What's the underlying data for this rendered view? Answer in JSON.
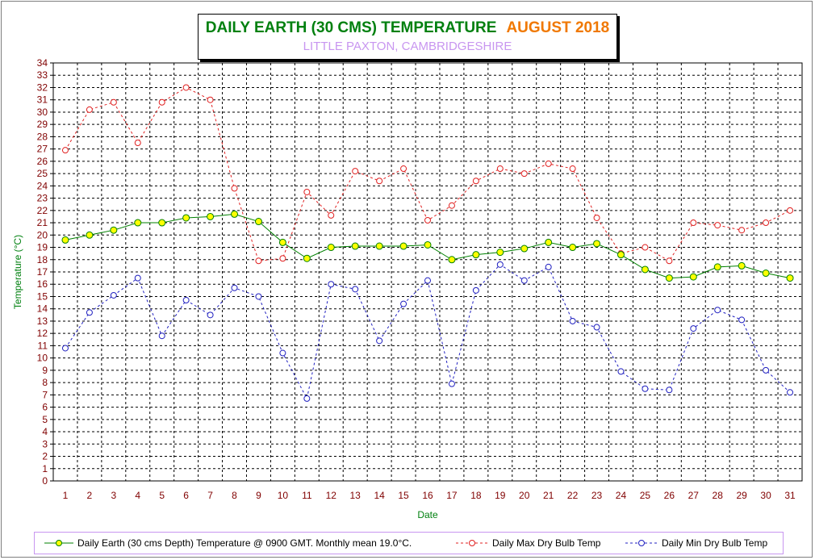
{
  "title": {
    "main": "DAILY EARTH (30 CMS) TEMPERATURE",
    "month": "AUGUST 2018",
    "subtitle": "LITTLE PAXTON, CAMBRIDGESHIRE"
  },
  "colors": {
    "earth": "#008000",
    "earth_marker": "#ffff00",
    "max": "#e02020",
    "min": "#2020c0",
    "axis_label": "#00800f",
    "tick_label": "#800000",
    "legend_border": "#c896f0"
  },
  "chart_data": {
    "type": "line",
    "xlabel": "Date",
    "ylabel": "Temperature (°C)",
    "ylim": [
      0,
      34
    ],
    "grid": true,
    "legend_position": "bottom",
    "x": [
      1,
      2,
      3,
      4,
      5,
      6,
      7,
      8,
      9,
      10,
      11,
      12,
      13,
      14,
      15,
      16,
      17,
      18,
      19,
      20,
      21,
      22,
      23,
      24,
      25,
      26,
      27,
      28,
      29,
      30,
      31
    ],
    "y_ticks": [
      0,
      1,
      2,
      3,
      4,
      5,
      6,
      7,
      8,
      9,
      10,
      11,
      12,
      13,
      14,
      15,
      16,
      17,
      18,
      19,
      20,
      21,
      22,
      23,
      24,
      25,
      26,
      27,
      28,
      29,
      30,
      31,
      32,
      33,
      34
    ],
    "series": [
      {
        "name": "Daily Earth (30 cms Depth) Temperature @ 0900 GMT. Monthly mean 19.0°C.",
        "style": "solid",
        "values": [
          19.6,
          20.0,
          20.4,
          21.0,
          21.0,
          21.4,
          21.5,
          21.7,
          21.1,
          19.4,
          18.1,
          19.0,
          19.1,
          19.1,
          19.1,
          19.2,
          18.0,
          18.4,
          18.6,
          18.9,
          19.4,
          19.0,
          19.3,
          18.4,
          17.2,
          16.5,
          16.6,
          17.4,
          17.5,
          16.9,
          16.5
        ]
      },
      {
        "name": "Daily Max Dry Bulb Temp",
        "style": "dashed",
        "values": [
          26.9,
          30.2,
          30.8,
          27.5,
          30.8,
          32.0,
          31.0,
          23.8,
          17.9,
          18.1,
          23.5,
          21.6,
          25.2,
          24.4,
          25.4,
          21.2,
          22.4,
          24.4,
          25.4,
          25.0,
          25.8,
          25.4,
          21.4,
          18.5,
          19.0,
          17.9,
          21.0,
          20.8,
          20.4,
          21.0,
          22.0
        ]
      },
      {
        "name": "Daily Min Dry Bulb Temp",
        "style": "dashed",
        "values": [
          10.8,
          13.7,
          15.1,
          16.5,
          11.8,
          14.7,
          13.5,
          15.7,
          15.0,
          10.4,
          6.7,
          16.0,
          15.6,
          11.4,
          14.4,
          16.3,
          7.9,
          15.5,
          17.6,
          16.3,
          17.4,
          13.0,
          12.5,
          8.9,
          7.5,
          7.4,
          12.4,
          13.9,
          13.1,
          9.0,
          7.2
        ]
      }
    ]
  }
}
